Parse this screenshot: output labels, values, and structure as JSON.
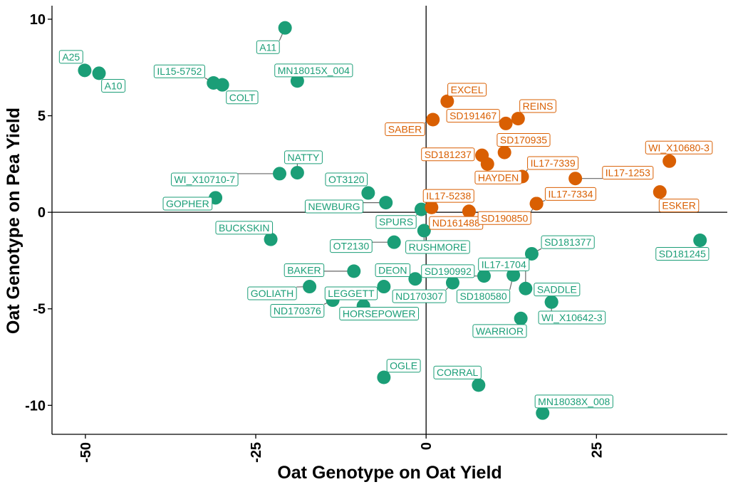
{
  "chart_data": {
    "type": "scatter",
    "xlabel": "Oat Genotype on Oat Yield",
    "ylabel": "Oat Genotype on Pea Yield",
    "xlim": [
      -54.9,
      44.2
    ],
    "ylim": [
      -11.5,
      10.7
    ],
    "xticks": [
      -50,
      -25,
      0,
      25
    ],
    "xtick_labels": [
      "-50",
      "-25",
      "0",
      "25"
    ],
    "yticks": [
      -10,
      -5,
      0,
      5,
      10
    ],
    "ytick_labels": [
      "-10",
      "-5",
      "0",
      "5",
      "10"
    ],
    "grid": false,
    "reference_lines": {
      "x": 0,
      "y": 0
    },
    "colors": {
      "green": "#1b9e77",
      "orange": "#d95f02"
    },
    "points": [
      {
        "name": "A11",
        "x": -20.7,
        "y": 9.55,
        "group": "green"
      },
      {
        "name": "A25",
        "x": -50.1,
        "y": 7.35,
        "group": "green"
      },
      {
        "name": "A10",
        "x": -48.0,
        "y": 7.2,
        "group": "green"
      },
      {
        "name": "IL15-5752",
        "x": -31.2,
        "y": 6.7,
        "group": "green"
      },
      {
        "name": "COLT",
        "x": -29.9,
        "y": 6.6,
        "group": "green"
      },
      {
        "name": "MN18015X_004",
        "x": -18.9,
        "y": 6.8,
        "group": "green"
      },
      {
        "name": "NATTY",
        "x": -18.9,
        "y": 2.05,
        "group": "green"
      },
      {
        "name": "WI_X10710-7",
        "x": -21.5,
        "y": 2.0,
        "group": "green"
      },
      {
        "name": "GOPHER",
        "x": -30.9,
        "y": 0.75,
        "group": "green"
      },
      {
        "name": "OT3120",
        "x": -8.5,
        "y": 1.0,
        "group": "green"
      },
      {
        "name": "NEWBURG",
        "x": -5.9,
        "y": 0.5,
        "group": "green"
      },
      {
        "name": "SPURS",
        "x": -0.7,
        "y": 0.15,
        "group": "green"
      },
      {
        "name": "BUCKSKIN",
        "x": -22.8,
        "y": -1.4,
        "group": "green"
      },
      {
        "name": "OT2130",
        "x": -4.7,
        "y": -1.55,
        "group": "green"
      },
      {
        "name": "RUSHMORE",
        "x": -0.3,
        "y": -0.95,
        "group": "green"
      },
      {
        "name": "BAKER",
        "x": -10.6,
        "y": -3.05,
        "group": "green"
      },
      {
        "name": "DEON",
        "x": -1.6,
        "y": -3.45,
        "group": "green"
      },
      {
        "name": "GOLIATH",
        "x": -17.1,
        "y": -3.85,
        "group": "green"
      },
      {
        "name": "LEGGETT",
        "x": -6.2,
        "y": -3.85,
        "group": "green"
      },
      {
        "name": "ND170376",
        "x": -13.7,
        "y": -4.55,
        "group": "green"
      },
      {
        "name": "HORSEPOWER",
        "x": -9.2,
        "y": -4.85,
        "group": "green"
      },
      {
        "name": "ND170307",
        "x": 3.9,
        "y": -3.65,
        "group": "green"
      },
      {
        "name": "SD190992",
        "x": 8.5,
        "y": -3.3,
        "group": "green"
      },
      {
        "name": "SD180580",
        "x": 12.8,
        "y": -3.25,
        "group": "green"
      },
      {
        "name": "IL17-1704",
        "x": 14.6,
        "y": -3.95,
        "group": "green"
      },
      {
        "name": "SD181377",
        "x": 15.5,
        "y": -2.15,
        "group": "green"
      },
      {
        "name": "SADDLE",
        "x": 18.4,
        "y": -4.65,
        "group": "green"
      },
      {
        "name": "WI_X10642-3",
        "x": 18.4,
        "y": -4.65,
        "group": "green"
      },
      {
        "name": "WARRIOR",
        "x": 13.9,
        "y": -5.5,
        "group": "green"
      },
      {
        "name": "SD181245",
        "x": 40.2,
        "y": -1.45,
        "group": "green"
      },
      {
        "name": "OGLE",
        "x": -6.2,
        "y": -8.55,
        "group": "green"
      },
      {
        "name": "CORRAL",
        "x": 7.7,
        "y": -8.95,
        "group": "green"
      },
      {
        "name": "MN18038X_008",
        "x": 17.1,
        "y": -10.4,
        "group": "green"
      },
      {
        "name": "EXCEL",
        "x": 3.1,
        "y": 5.75,
        "group": "orange"
      },
      {
        "name": "SABER",
        "x": 1.0,
        "y": 4.8,
        "group": "orange"
      },
      {
        "name": "SD191467",
        "x": 11.7,
        "y": 4.6,
        "group": "orange"
      },
      {
        "name": "REINS",
        "x": 13.5,
        "y": 4.85,
        "group": "orange"
      },
      {
        "name": "SD170935",
        "x": 11.5,
        "y": 3.1,
        "group": "orange"
      },
      {
        "name": "SD181237",
        "x": 8.2,
        "y": 2.95,
        "group": "orange"
      },
      {
        "name": "HAYDEN",
        "x": 9.0,
        "y": 2.5,
        "group": "orange"
      },
      {
        "name": "IL17-7339",
        "x": 14.1,
        "y": 1.85,
        "group": "orange"
      },
      {
        "name": "IL17-1253",
        "x": 21.9,
        "y": 1.75,
        "group": "orange"
      },
      {
        "name": "WI_X10680-3",
        "x": 35.7,
        "y": 2.65,
        "group": "orange"
      },
      {
        "name": "ESKER",
        "x": 34.3,
        "y": 1.05,
        "group": "orange"
      },
      {
        "name": "IL17-5238",
        "x": 0.8,
        "y": 0.25,
        "group": "orange"
      },
      {
        "name": "IL17-7334",
        "x": 16.2,
        "y": 0.45,
        "group": "orange"
      },
      {
        "name": "ND161488",
        "x": 6.3,
        "y": 0.05,
        "group": "orange"
      },
      {
        "name": "SD190850",
        "x": 16.2,
        "y": 0.45,
        "group": "orange"
      }
    ],
    "label_positions": [
      {
        "name": "A11",
        "lx": -23.2,
        "ly": 8.55
      },
      {
        "name": "A25",
        "lx": -52.1,
        "ly": 8.05
      },
      {
        "name": "A10",
        "lx": -45.9,
        "ly": 6.55
      },
      {
        "name": "IL15-5752",
        "lx": -36.2,
        "ly": 7.3
      },
      {
        "name": "COLT",
        "lx": -27.0,
        "ly": 5.95
      },
      {
        "name": "MN18015X_004",
        "lx": -16.5,
        "ly": 7.35
      },
      {
        "name": "NATTY",
        "lx": -18.0,
        "ly": 2.85
      },
      {
        "name": "WI_X10710-7",
        "lx": -32.5,
        "ly": 1.7
      },
      {
        "name": "GOPHER",
        "lx": -35.0,
        "ly": 0.45
      },
      {
        "name": "OT3120",
        "lx": -11.7,
        "ly": 1.7
      },
      {
        "name": "NEWBURG",
        "lx": -13.5,
        "ly": 0.3
      },
      {
        "name": "SPURS",
        "lx": -4.4,
        "ly": -0.5
      },
      {
        "name": "BUCKSKIN",
        "lx": -26.7,
        "ly": -0.8
      },
      {
        "name": "OT2130",
        "lx": -11.0,
        "ly": -1.75
      },
      {
        "name": "RUSHMORE",
        "lx": 1.7,
        "ly": -1.8
      },
      {
        "name": "BAKER",
        "lx": -17.9,
        "ly": -3.0
      },
      {
        "name": "DEON",
        "lx": -4.9,
        "ly": -3.0
      },
      {
        "name": "GOLIATH",
        "lx": -22.6,
        "ly": -4.2
      },
      {
        "name": "LEGGETT",
        "lx": -11.0,
        "ly": -4.2
      },
      {
        "name": "ND170376",
        "lx": -18.9,
        "ly": -5.1
      },
      {
        "name": "HORSEPOWER",
        "lx": -6.9,
        "ly": -5.25
      },
      {
        "name": "ND170307",
        "lx": -1.0,
        "ly": -4.35
      },
      {
        "name": "SD190992",
        "lx": 3.2,
        "ly": -3.05
      },
      {
        "name": "SD180580",
        "lx": 8.4,
        "ly": -4.35
      },
      {
        "name": "IL17-1704",
        "lx": 11.4,
        "ly": -2.7
      },
      {
        "name": "SD181377",
        "lx": 20.8,
        "ly": -1.55
      },
      {
        "name": "SADDLE",
        "lx": 19.2,
        "ly": -4.0
      },
      {
        "name": "WI_X10642-3",
        "lx": 21.4,
        "ly": -5.45
      },
      {
        "name": "WARRIOR",
        "lx": 10.8,
        "ly": -6.15
      },
      {
        "name": "SD181245",
        "lx": 37.6,
        "ly": -2.15
      },
      {
        "name": "OGLE",
        "lx": -3.3,
        "ly": -7.95
      },
      {
        "name": "CORRAL",
        "lx": 4.6,
        "ly": -8.3
      },
      {
        "name": "MN18038X_008",
        "lx": 21.7,
        "ly": -9.8
      },
      {
        "name": "EXCEL",
        "lx": 6.0,
        "ly": 6.35
      },
      {
        "name": "SABER",
        "lx": -3.1,
        "ly": 4.3
      },
      {
        "name": "SD191467",
        "lx": 6.9,
        "ly": 5.0
      },
      {
        "name": "REINS",
        "lx": 16.4,
        "ly": 5.5
      },
      {
        "name": "SD170935",
        "lx": 14.3,
        "ly": 3.75
      },
      {
        "name": "SD181237",
        "lx": 3.2,
        "ly": 3.0
      },
      {
        "name": "HAYDEN",
        "lx": 10.6,
        "ly": 1.8
      },
      {
        "name": "IL17-7339",
        "lx": 18.6,
        "ly": 2.55
      },
      {
        "name": "IL17-1253",
        "lx": 29.6,
        "ly": 2.05
      },
      {
        "name": "WI_X10680-3",
        "lx": 37.1,
        "ly": 3.35
      },
      {
        "name": "ESKER",
        "lx": 37.1,
        "ly": 0.35
      },
      {
        "name": "IL17-5238",
        "lx": 3.3,
        "ly": 0.85
      },
      {
        "name": "IL17-7334",
        "lx": 21.2,
        "ly": 0.95
      },
      {
        "name": "ND161488",
        "lx": 4.4,
        "ly": -0.55
      },
      {
        "name": "SD190850",
        "lx": 11.5,
        "ly": -0.3
      }
    ]
  }
}
